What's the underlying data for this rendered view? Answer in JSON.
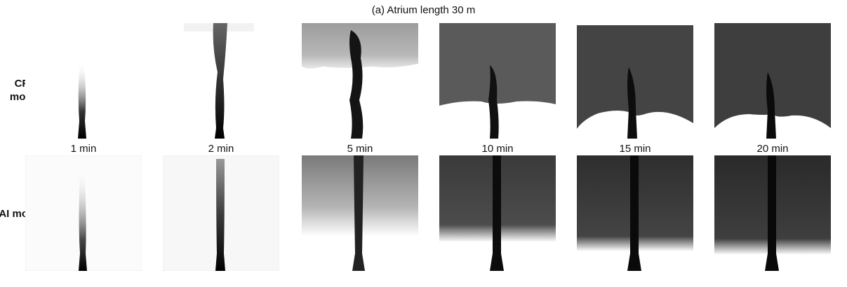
{
  "title": "(a) Atrium length  30 m",
  "rows": {
    "cfd_label_line1": "CFD",
    "cfd_label_line2": "model",
    "ai_label": "AI model"
  },
  "times": [
    "1 min",
    "2 min",
    "5 min",
    "10 min",
    "15 min",
    "20 min"
  ],
  "colors": {
    "smoke_dark": "#0a0a0a",
    "smoke_mid": "#4a4a4a",
    "background": "#ffffff"
  }
}
